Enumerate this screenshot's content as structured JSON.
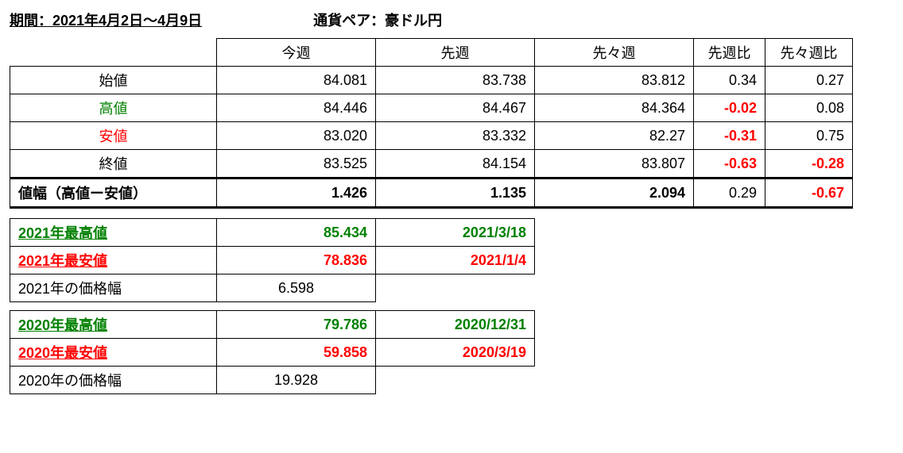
{
  "header": {
    "period": "期間：2021年4月2日～4月9日",
    "pair": "通貨ペア：豪ドル円"
  },
  "mainTable": {
    "columns": {
      "thisWeek": "今週",
      "lastWeek": "先週",
      "twoWeeksAgo": "先々週",
      "vsLastWeek": "先週比",
      "vsTwoWeeksAgo": "先々週比"
    },
    "rows": {
      "open": {
        "label": "始値",
        "labelColor": "#000000",
        "w1": "84.081",
        "w2": "83.738",
        "w3": "83.812",
        "d1": "0.34",
        "d1Color": "#000000",
        "d2": "0.27",
        "d2Color": "#000000"
      },
      "high": {
        "label": "高値",
        "labelColor": "#008000",
        "w1": "84.446",
        "w2": "84.467",
        "w3": "84.364",
        "d1": "-0.02",
        "d1Color": "#ff0000",
        "d2": "0.08",
        "d2Color": "#000000"
      },
      "low": {
        "label": "安値",
        "labelColor": "#ff0000",
        "w1": "83.020",
        "w2": "83.332",
        "w3": "82.27",
        "d1": "-0.31",
        "d1Color": "#ff0000",
        "d2": "0.75",
        "d2Color": "#000000"
      },
      "close": {
        "label": "終値",
        "labelColor": "#000000",
        "w1": "83.525",
        "w2": "84.154",
        "w3": "83.807",
        "d1": "-0.63",
        "d1Color": "#ff0000",
        "d2": "-0.28",
        "d2Color": "#ff0000"
      }
    },
    "range": {
      "label": "値幅（高値ー安値）",
      "w1": "1.426",
      "w2": "1.135",
      "w3": "2.094",
      "d1": "0.29",
      "d1Color": "#000000",
      "d2": "-0.67",
      "d2Color": "#ff0000"
    }
  },
  "year2021": {
    "high": {
      "label": "2021年最高値",
      "value": "85.434",
      "date": "2021/3/18",
      "color": "#008000"
    },
    "low": {
      "label": "2021年最安値",
      "value": "78.836",
      "date": "2021/1/4",
      "color": "#ff0000"
    },
    "range": {
      "label": "2021年の価格幅",
      "value": "6.598"
    }
  },
  "year2020": {
    "high": {
      "label": "2020年最高値",
      "value": "79.786",
      "date": "2020/12/31",
      "color": "#008000"
    },
    "low": {
      "label": "2020年最安値",
      "value": "59.858",
      "date": "2020/3/19",
      "color": "#ff0000"
    },
    "range": {
      "label": "2020年の価格幅",
      "value": "19.928"
    }
  },
  "styling": {
    "fontSize": 18,
    "fontFamily": "Meiryo",
    "borderColor": "#000000",
    "backgroundColor": "#ffffff",
    "textColor": "#000000",
    "greenColor": "#008000",
    "redColor": "#ff0000",
    "columnWidths": {
      "label": 260,
      "week": 200,
      "diff1": 90,
      "diff2": 110
    }
  }
}
